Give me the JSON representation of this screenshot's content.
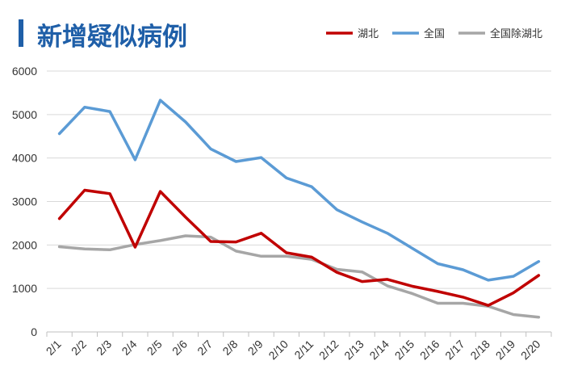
{
  "chart_data": {
    "type": "line",
    "title": "新增疑似病例",
    "xlabel": "",
    "ylabel": "",
    "ylim": [
      0,
      6000
    ],
    "yticks": [
      "0",
      "1000",
      "2000",
      "3000",
      "4000",
      "5000",
      "6000"
    ],
    "grid": "horizontal",
    "legend_position": "top-right",
    "categories": [
      "2/1",
      "2/2",
      "2/3",
      "2/4",
      "2/5",
      "2/6",
      "2/7",
      "2/8",
      "2/9",
      "2/10",
      "2/11",
      "2/12",
      "2/13",
      "2/14",
      "2/15",
      "2/16",
      "2/17",
      "2/18",
      "2/19",
      "2/20"
    ],
    "series": [
      {
        "name": "湖北",
        "color": "#c00000",
        "values": [
          2606,
          3260,
          3180,
          1950,
          3230,
          2640,
          2080,
          2070,
          2270,
          1820,
          1720,
          1370,
          1160,
          1210,
          1050,
          930,
          800,
          610,
          900,
          1300
        ]
      },
      {
        "name": "全国",
        "color": "#5b9bd5",
        "values": [
          4560,
          5170,
          5070,
          3960,
          5330,
          4830,
          4210,
          3920,
          4010,
          3540,
          3340,
          2810,
          2530,
          2270,
          1920,
          1570,
          1430,
          1190,
          1280,
          1620
        ]
      },
      {
        "name": "全国除湖北",
        "color": "#a6a6a6",
        "values": [
          1960,
          1910,
          1890,
          2010,
          2100,
          2210,
          2180,
          1860,
          1740,
          1740,
          1670,
          1440,
          1380,
          1060,
          880,
          660,
          660,
          590,
          400,
          340
        ]
      }
    ]
  }
}
